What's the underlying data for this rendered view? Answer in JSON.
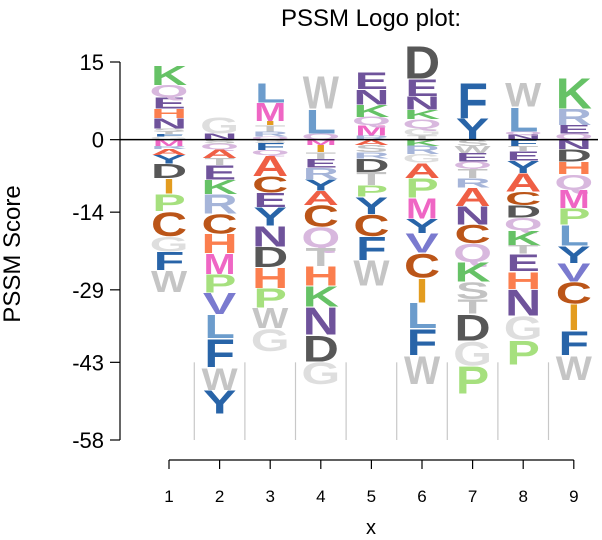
{
  "chart_data": {
    "type": "sequence-logo",
    "title": "PSSM Logo plot:",
    "xlabel": "x",
    "ylabel": "PSSM  Score",
    "x": [
      1,
      2,
      3,
      4,
      5,
      6,
      7,
      8,
      9
    ],
    "yticks": [
      15,
      0,
      -14,
      -29,
      -43,
      -58
    ],
    "ylim": [
      -58,
      15
    ],
    "columns": [
      {
        "pos": 1,
        "pos_stack": [
          [
            "G",
            0.6
          ],
          [
            "F",
            0.5
          ],
          [
            "T",
            0.5
          ],
          [
            "S",
            0.6
          ],
          [
            "N",
            2.0
          ],
          [
            "H",
            1.8
          ],
          [
            "E",
            2.2
          ],
          [
            "Q",
            2.4
          ],
          [
            "K",
            3.8
          ]
        ],
        "neg_stack": [
          [
            "M",
            1.2
          ],
          [
            "R",
            0.6
          ],
          [
            "A",
            1.2
          ],
          [
            "Y",
            1.6
          ],
          [
            "D",
            2.8
          ],
          [
            "I",
            3.0
          ],
          [
            "P",
            3.4
          ],
          [
            "C",
            4.8
          ],
          [
            "G",
            3.0
          ],
          [
            "F",
            3.6
          ],
          [
            "W",
            4.2
          ]
        ]
      },
      {
        "pos": 2,
        "pos_stack": [
          [
            "N",
            1.2
          ],
          [
            "G",
            3.2
          ]
        ],
        "neg_stack": [
          [
            "S",
            0.7
          ],
          [
            "Q",
            1.2
          ],
          [
            "A",
            1.6
          ],
          [
            "T",
            1.4
          ],
          [
            "E",
            2.8
          ],
          [
            "K",
            2.8
          ],
          [
            "R",
            3.8
          ],
          [
            "C",
            3.8
          ],
          [
            "H",
            3.8
          ],
          [
            "M",
            4.0
          ],
          [
            "P",
            3.6
          ],
          [
            "V",
            4.2
          ],
          [
            "L",
            4.6
          ],
          [
            "F",
            5.6
          ],
          [
            "W",
            4.4
          ],
          [
            "Y",
            4.6
          ]
        ]
      },
      {
        "pos": 3,
        "pos_stack": [
          [
            "Q",
            0.6
          ],
          [
            "R",
            1.0
          ],
          [
            "T",
            1.2
          ],
          [
            "I",
            0.8
          ],
          [
            "M",
            3.6
          ],
          [
            "L",
            3.8
          ]
        ],
        "neg_stack": [
          [
            "S",
            0.6
          ],
          [
            "F",
            1.4
          ],
          [
            "Q",
            1.0
          ],
          [
            "A",
            4.0
          ],
          [
            "C",
            3.2
          ],
          [
            "E",
            2.8
          ],
          [
            "Y",
            3.6
          ],
          [
            "N",
            4.0
          ],
          [
            "D",
            4.0
          ],
          [
            "H",
            4.0
          ],
          [
            "P",
            3.8
          ],
          [
            "W",
            4.0
          ],
          [
            "G",
            4.4
          ]
        ]
      },
      {
        "pos": 4,
        "pos_stack": [
          [
            "Q",
            1.2
          ],
          [
            "L",
            4.8
          ],
          [
            "W",
            6.4
          ]
        ],
        "neg_stack": [
          [
            "M",
            1.0
          ],
          [
            "I",
            1.4
          ],
          [
            "T",
            1.4
          ],
          [
            "E",
            1.6
          ],
          [
            "R",
            2.2
          ],
          [
            "Y",
            2.2
          ],
          [
            "A",
            2.8
          ],
          [
            "C",
            4.2
          ],
          [
            "Q",
            4.0
          ],
          [
            "T",
            3.6
          ],
          [
            "H",
            3.8
          ],
          [
            "K",
            4.0
          ],
          [
            "N",
            5.4
          ],
          [
            "D",
            5.2
          ],
          [
            "G",
            4.4
          ]
        ]
      },
      {
        "pos": 5,
        "pos_stack": [
          [
            "R",
            0.8
          ],
          [
            "M",
            2.0
          ],
          [
            "Q",
            1.6
          ],
          [
            "K",
            2.4
          ],
          [
            "N",
            3.0
          ],
          [
            "E",
            3.4
          ]
        ],
        "neg_stack": [
          [
            "A",
            1.0
          ],
          [
            "S",
            1.4
          ],
          [
            "R",
            1.2
          ],
          [
            "D",
            2.6
          ],
          [
            "T",
            2.6
          ],
          [
            "P",
            2.2
          ],
          [
            "Y",
            3.4
          ],
          [
            "C",
            4.2
          ],
          [
            "F",
            4.6
          ],
          [
            "W",
            5.0
          ]
        ]
      },
      {
        "pos": 6,
        "pos_stack": [
          [
            "T",
            0.8
          ],
          [
            "G",
            1.4
          ],
          [
            "Q",
            1.8
          ],
          [
            "K",
            1.8
          ],
          [
            "N",
            2.6
          ],
          [
            "E",
            3.4
          ],
          [
            "D",
            6.4
          ]
        ],
        "neg_stack": [
          [
            "K",
            1.2
          ],
          [
            "R",
            1.6
          ],
          [
            "G",
            1.6
          ],
          [
            "A",
            3.0
          ],
          [
            "P",
            3.8
          ],
          [
            "M",
            4.0
          ],
          [
            "Y",
            2.8
          ],
          [
            "V",
            3.8
          ],
          [
            "C",
            4.8
          ],
          [
            "I",
            4.8
          ],
          [
            "L",
            5.0
          ],
          [
            "F",
            5.2
          ],
          [
            "W",
            5.6
          ]
        ]
      },
      {
        "pos": 7,
        "pos_stack": [
          [
            "Y",
            4.2
          ],
          [
            "F",
            7.0
          ]
        ],
        "neg_stack": [
          [
            "S",
            1.2
          ],
          [
            "W",
            1.4
          ],
          [
            "E",
            1.6
          ],
          [
            "Q",
            1.4
          ],
          [
            "T",
            1.8
          ],
          [
            "R",
            1.8
          ],
          [
            "A",
            3.6
          ],
          [
            "N",
            3.6
          ],
          [
            "C",
            3.6
          ],
          [
            "Q",
            3.6
          ],
          [
            "K",
            3.8
          ],
          [
            "S",
            3.4
          ],
          [
            "T",
            2.8
          ],
          [
            "D",
            5.2
          ],
          [
            "G",
            4.8
          ],
          [
            "P",
            5.4
          ]
        ]
      },
      {
        "pos": 8,
        "pos_stack": [
          [
            "N",
            1.0
          ],
          [
            "Q",
            0.6
          ],
          [
            "L",
            4.8
          ],
          [
            "W",
            4.8
          ]
        ],
        "neg_stack": [
          [
            "F",
            1.2
          ],
          [
            "T",
            1.0
          ],
          [
            "E",
            1.8
          ],
          [
            "Y",
            2.4
          ],
          [
            "A",
            3.6
          ],
          [
            "C",
            2.6
          ],
          [
            "D",
            2.4
          ],
          [
            "Q",
            2.4
          ],
          [
            "K",
            3.0
          ],
          [
            "T",
            1.6
          ],
          [
            "E",
            3.4
          ],
          [
            "H",
            3.4
          ],
          [
            "N",
            5.2
          ],
          [
            "G",
            4.6
          ],
          [
            "P",
            4.8
          ]
        ]
      },
      {
        "pos": 9,
        "pos_stack": [
          [
            "Q",
            1.2
          ],
          [
            "E",
            1.6
          ],
          [
            "R",
            3.2
          ],
          [
            "K",
            6.0
          ]
        ],
        "neg_stack": [
          [
            "N",
            1.8
          ],
          [
            "D",
            2.4
          ],
          [
            "H",
            2.4
          ],
          [
            "Q",
            3.0
          ],
          [
            "M",
            3.6
          ],
          [
            "P",
            3.2
          ],
          [
            "L",
            4.0
          ],
          [
            "Y",
            3.4
          ],
          [
            "V",
            3.6
          ],
          [
            "C",
            4.2
          ],
          [
            "I",
            5.2
          ],
          [
            "F",
            4.8
          ],
          [
            "W",
            4.8
          ]
        ]
      }
    ],
    "colors": {
      "K": "#66c266",
      "R": "#a6b5d9",
      "H": "#fb7e4e",
      "D": "#575757",
      "E": "#6f539b",
      "N": "#6f539b",
      "Q": "#d8b8de",
      "S": "#c3c3c3",
      "T": "#c3c3c3",
      "G": "#dedede",
      "P": "#a6e07e",
      "C": "#bb5518",
      "A": "#ef5f45",
      "V": "#7a7acf",
      "L": "#6c9ccc",
      "I": "#e39c1f",
      "M": "#ef66c4",
      "F": "#2864a8",
      "W": "#c5c5c5",
      "Y": "#2864a8"
    }
  }
}
